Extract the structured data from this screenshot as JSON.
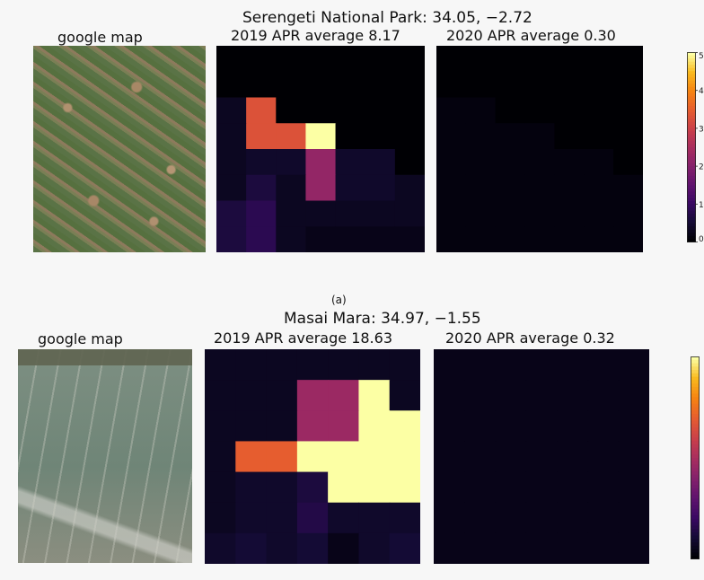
{
  "chart_data": [
    {
      "type": "heatmap",
      "panel_label": "(a)",
      "title": "Serengeti National Park: 34.05, −2.72",
      "map_label": "google map",
      "cmap": "inferno",
      "colorbar_ticks": [
        "5",
        "4",
        "3",
        "2",
        "1",
        "0"
      ],
      "vmin": 0,
      "vmax": 5,
      "subplots": [
        {
          "label": "2019 APR average 8.17",
          "values": [
            [
              0,
              0,
              0,
              0,
              0,
              0,
              0
            ],
            [
              0,
              0,
              0,
              0,
              0,
              0,
              0
            ],
            [
              0.3,
              3.3,
              0,
              0,
              0,
              0,
              0
            ],
            [
              0.3,
              3.3,
              3.3,
              5,
              0,
              0,
              0
            ],
            [
              0.3,
              0.4,
              0.4,
              2.2,
              0.4,
              0.4,
              0
            ],
            [
              0.3,
              0.6,
              0.3,
              2.2,
              0.4,
              0.4,
              0.3
            ],
            [
              0.6,
              0.8,
              0.3,
              0.3,
              0.3,
              0.3,
              0.3
            ],
            [
              0.6,
              0.8,
              0.3,
              0.2,
              0.2,
              0.2,
              0.2
            ]
          ]
        },
        {
          "label": "2020 APR average 0.30",
          "values": [
            [
              0,
              0,
              0,
              0,
              0,
              0,
              0
            ],
            [
              0,
              0,
              0,
              0,
              0,
              0,
              0
            ],
            [
              0.1,
              0.1,
              0,
              0,
              0,
              0,
              0
            ],
            [
              0.1,
              0.1,
              0.1,
              0.1,
              0,
              0,
              0
            ],
            [
              0.1,
              0.1,
              0.1,
              0.1,
              0.1,
              0.1,
              0
            ],
            [
              0.1,
              0.1,
              0.1,
              0.1,
              0.1,
              0.1,
              0.1
            ],
            [
              0.1,
              0.1,
              0.1,
              0.1,
              0.1,
              0.1,
              0.1
            ],
            [
              0.1,
              0.1,
              0.1,
              0.1,
              0.1,
              0.1,
              0.1
            ]
          ]
        }
      ]
    },
    {
      "type": "heatmap",
      "title": "Masai Mara: 34.97, −1.55",
      "map_label": "google map",
      "cmap": "inferno",
      "colorbar_ticks": [],
      "vmin": 0,
      "vmax": 5,
      "subplots": [
        {
          "label": "2019 APR average 18.63",
          "values": [
            [
              0.3,
              0.3,
              0.3,
              0.3,
              0.3,
              0.3,
              0.3
            ],
            [
              0.3,
              0.3,
              0.3,
              2.3,
              2.3,
              5,
              0.3
            ],
            [
              0.3,
              0.3,
              0.3,
              2.3,
              2.3,
              5,
              5
            ],
            [
              0.3,
              3.5,
              3.5,
              5,
              5,
              5,
              5
            ],
            [
              0.3,
              0.4,
              0.4,
              0.6,
              5,
              5,
              5
            ],
            [
              0.3,
              0.4,
              0.4,
              0.7,
              0.4,
              0.4,
              0.4
            ],
            [
              0.4,
              0.5,
              0.4,
              0.5,
              0.2,
              0.4,
              0.5
            ]
          ]
        },
        {
          "label": "2020 APR average 0.32",
          "values": [
            [
              0.2,
              0.2,
              0.2,
              0.2,
              0.2,
              0.2,
              0.2
            ],
            [
              0.2,
              0.2,
              0.2,
              0.2,
              0.2,
              0.2,
              0.2
            ],
            [
              0.2,
              0.2,
              0.2,
              0.2,
              0.2,
              0.2,
              0.2
            ],
            [
              0.2,
              0.2,
              0.2,
              0.2,
              0.2,
              0.2,
              0.2
            ],
            [
              0.2,
              0.2,
              0.2,
              0.2,
              0.2,
              0.2,
              0.2
            ],
            [
              0.2,
              0.2,
              0.2,
              0.2,
              0.2,
              0.2,
              0.2
            ],
            [
              0.2,
              0.2,
              0.2,
              0.2,
              0.2,
              0.2,
              0.2
            ]
          ]
        }
      ]
    }
  ]
}
